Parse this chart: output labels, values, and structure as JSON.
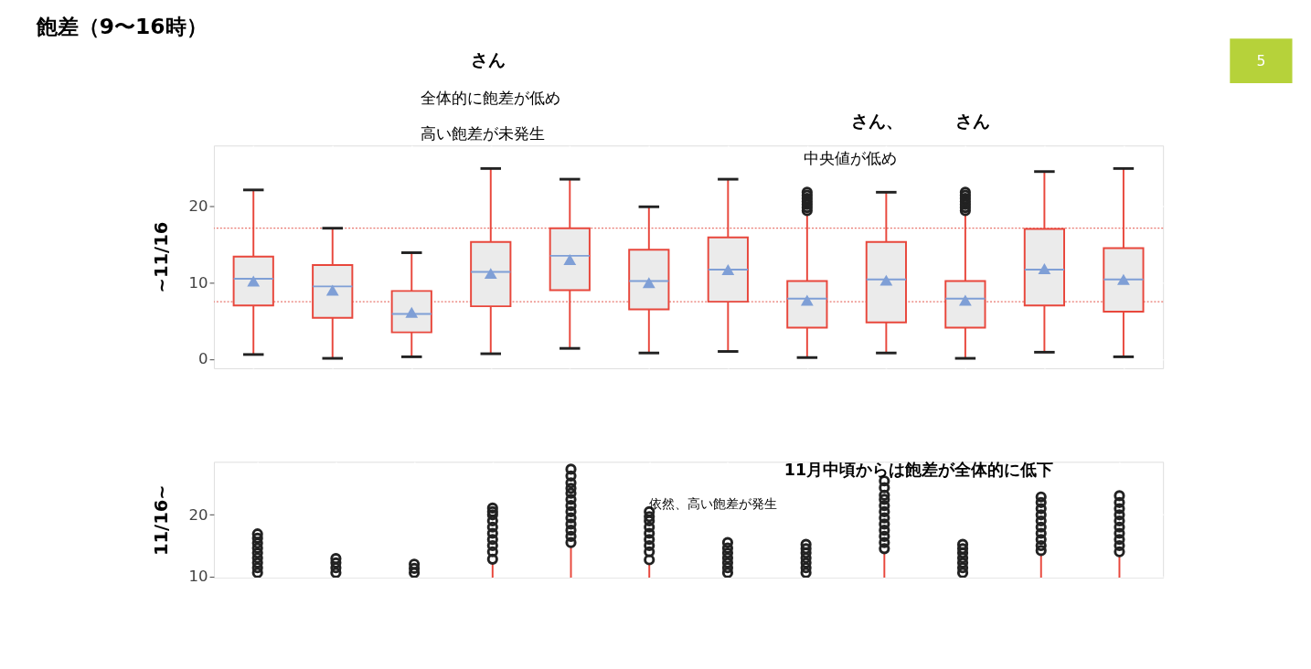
{
  "chart_data": [
    {
      "type": "box",
      "title": "飽差（9〜16時）",
      "ylabel": "~11/16",
      "ylim": [
        -1.2,
        27.9
      ],
      "yticks": [
        0,
        10,
        20
      ],
      "grid": true,
      "tick_labels": "y",
      "categories": [
        null,
        null,
        null,
        null,
        null,
        null,
        null,
        null,
        null,
        null,
        null,
        null
      ],
      "ref_lines": [
        {
          "axis": "y",
          "value": 17.1,
          "color": "#e8736b",
          "line_style": "dotted"
        },
        {
          "axis": "y",
          "value": 7.5,
          "color": "#e8736b",
          "line_style": "dotted"
        }
      ],
      "annotations": [
        "5",
        "さん",
        "全体的に飽差が低め",
        "高い飽差が未発生",
        "さん、　　　さん",
        "中央値が低め"
      ],
      "series": [
        {
          "color": "#e8473c",
          "boxes": [
            {
              "low": 0.6,
              "q1": 7.0,
              "median": 10.5,
              "q3": 13.4,
              "high": 22.1,
              "mean": 10.2
            },
            {
              "low": 0.1,
              "q1": 5.4,
              "median": 9.5,
              "q3": 12.3,
              "high": 17.1,
              "mean": 9.0
            },
            {
              "low": 0.3,
              "q1": 3.5,
              "median": 5.9,
              "q3": 8.9,
              "high": 13.9,
              "mean": 6.1
            },
            {
              "low": 0.7,
              "q1": 6.9,
              "median": 11.4,
              "q3": 15.3,
              "high": 24.9,
              "mean": 11.2
            },
            {
              "low": 1.4,
              "q1": 9.0,
              "median": 13.5,
              "q3": 17.1,
              "high": 23.5,
              "mean": 13.0
            },
            {
              "low": 0.8,
              "q1": 6.5,
              "median": 10.2,
              "q3": 14.3,
              "high": 19.9,
              "mean": 10.0
            },
            {
              "low": 1.0,
              "q1": 7.5,
              "median": 11.7,
              "q3": 15.9,
              "high": 23.5,
              "mean": 11.7
            },
            {
              "low": 0.2,
              "q1": 4.1,
              "median": 7.9,
              "q3": 10.2,
              "high": 19.0,
              "mean": 7.7,
              "outliers": [
                19.4,
                19.8,
                20.2,
                20.6,
                21.0,
                21.4,
                21.8
              ]
            },
            {
              "low": 0.8,
              "q1": 4.8,
              "median": 10.4,
              "q3": 15.3,
              "high": 21.8,
              "mean": 10.3
            },
            {
              "low": 0.1,
              "q1": 4.1,
              "median": 7.9,
              "q3": 10.2,
              "high": 19.0,
              "mean": 7.7,
              "outliers": [
                19.4,
                19.8,
                20.2,
                20.6,
                21.0,
                21.4,
                21.8
              ]
            },
            {
              "low": 0.9,
              "q1": 7.0,
              "median": 11.7,
              "q3": 17.0,
              "high": 24.5,
              "mean": 11.8
            },
            {
              "low": 0.3,
              "q1": 6.2,
              "median": 10.4,
              "q3": 14.5,
              "high": 24.9,
              "mean": 10.4
            }
          ]
        }
      ]
    },
    {
      "type": "scatter",
      "marker": "circle",
      "ylabel": "11/16~",
      "ylim": [
        9.8,
        28.6
      ],
      "yticks": [
        10,
        20
      ],
      "grid": true,
      "tick_labels": "y",
      "categories": [
        null,
        null,
        null,
        null,
        null,
        null,
        null,
        null,
        null,
        null,
        null,
        null
      ],
      "annotations": [
        "11月中頃からは飽差が全体的に低下",
        "依然、高い飽差が発生"
      ],
      "series": [
        {
          "type": "bar",
          "color": "#e8473c",
          "values": [
            null,
            null,
            null,
            12.3,
            15.0,
            12.2,
            null,
            null,
            14.0,
            null,
            13.7,
            13.5
          ]
        },
        {
          "color": "#222222",
          "values": [
            10.6,
            10.6,
            10.6,
            12.8,
            15.5,
            12.7,
            10.6,
            10.6,
            14.5,
            10.6,
            14.2,
            14
          ]
        },
        {
          "color": "#222222",
          "values": [
            11.4,
            11.4,
            11.3,
            14,
            16.5,
            14,
            11.4,
            11.4,
            15.5,
            11.4,
            15,
            15
          ]
        },
        {
          "color": "#222222",
          "values": [
            12.2,
            12.2,
            12.0,
            15,
            17.5,
            15,
            12.2,
            12.2,
            16.5,
            12.2,
            16,
            16
          ]
        },
        {
          "color": "#222222",
          "values": [
            13,
            12.9,
            null,
            16,
            18.5,
            16,
            13,
            13,
            17.5,
            13,
            17,
            17
          ]
        },
        {
          "color": "#222222",
          "values": [
            13.8,
            null,
            null,
            17,
            19.5,
            17,
            13.8,
            13.8,
            18.5,
            13.8,
            18,
            18
          ]
        },
        {
          "color": "#222222",
          "values": [
            14.6,
            null,
            null,
            18,
            20.5,
            18,
            14.6,
            14.5,
            19.5,
            14.5,
            19,
            19
          ]
        },
        {
          "color": "#222222",
          "values": [
            15.4,
            null,
            null,
            19,
            21.5,
            19,
            15.5,
            15.2,
            20.5,
            15.2,
            20,
            20
          ]
        },
        {
          "color": "#222222",
          "values": [
            16.2,
            null,
            null,
            20,
            22.5,
            19.7,
            null,
            null,
            21.5,
            null,
            21,
            21
          ]
        },
        {
          "color": "#222222",
          "values": [
            16.9,
            null,
            null,
            20.5,
            23.5,
            20.5,
            null,
            null,
            22.5,
            null,
            22,
            22
          ]
        },
        {
          "color": "#222222",
          "values": [
            null,
            null,
            null,
            21.1,
            24.3,
            null,
            null,
            null,
            23.2,
            null,
            22.9,
            23.1
          ]
        },
        {
          "color": "#222222",
          "values": [
            null,
            null,
            null,
            null,
            25.2,
            null,
            null,
            null,
            24.4,
            null,
            null,
            null
          ]
        },
        {
          "color": "#222222",
          "values": [
            null,
            null,
            null,
            null,
            26.3,
            null,
            null,
            null,
            25.5,
            null,
            null,
            null
          ]
        },
        {
          "color": "#222222",
          "values": [
            null,
            null,
            null,
            null,
            27.4,
            null,
            null,
            null,
            null,
            null,
            null,
            null
          ]
        }
      ]
    }
  ]
}
